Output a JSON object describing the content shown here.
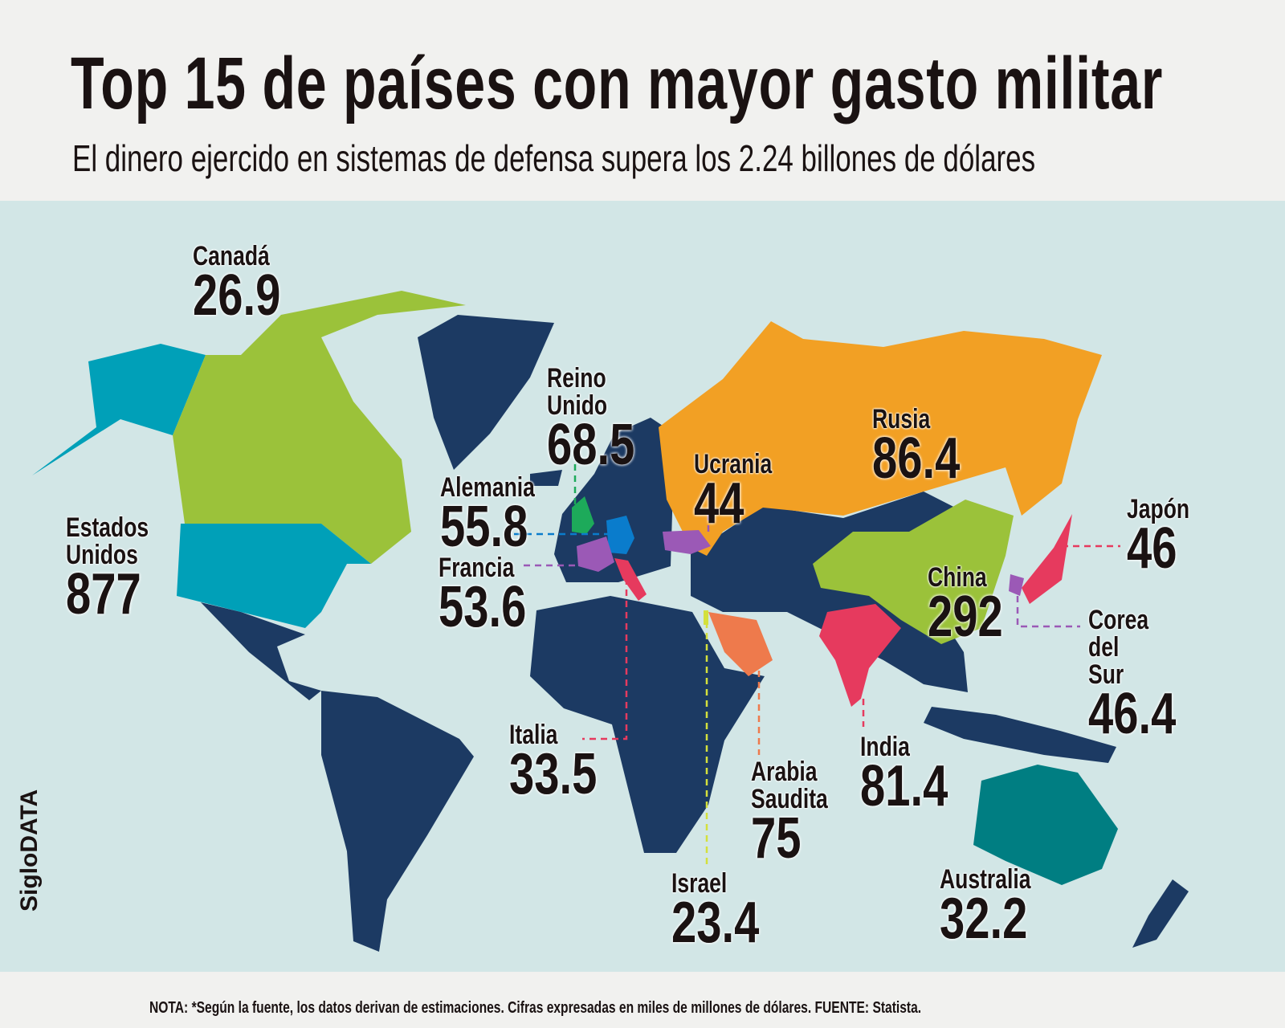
{
  "header": {
    "title": "Top 15 de países con mayor gasto militar",
    "subtitle": "El dinero ejercido en sistemas de defensa supera los 2.24 billones de dólares"
  },
  "countries": [
    {
      "name": "Canadá",
      "value": "26.9",
      "color": "#9bc23a"
    },
    {
      "name": "Estados Unidos",
      "value": "877",
      "color": "#00a0b8"
    },
    {
      "name": "Reino Unido",
      "value": "68.5",
      "color": "#1daa5a"
    },
    {
      "name": "Alemania",
      "value": "55.8",
      "color": "#0a7ccc"
    },
    {
      "name": "Francia",
      "value": "53.6",
      "color": "#9b59b6"
    },
    {
      "name": "Ucrania",
      "value": "44",
      "color": "#9b59b6"
    },
    {
      "name": "Rusia",
      "value": "86.4",
      "color": "#f2a024"
    },
    {
      "name": "Japón",
      "value": "46",
      "color": "#e63a5e"
    },
    {
      "name": "China",
      "value": "292",
      "color": "#9bc23a"
    },
    {
      "name": "Corea del Sur",
      "value": "46.4",
      "color": "#9b59b6"
    },
    {
      "name": "India",
      "value": "81.4",
      "color": "#e63a5e"
    },
    {
      "name": "Italia",
      "value": "33.5",
      "color": "#e63a5e"
    },
    {
      "name": "Arabia Saudita",
      "value": "75",
      "color": "#ee7a4c"
    },
    {
      "name": "Israel",
      "value": "23.4",
      "color": "#d4e03c"
    },
    {
      "name": "Australia",
      "value": "32.2",
      "color": "#007e82"
    }
  ],
  "colors": {
    "ocean": "#d2e6e6",
    "land": "#1c3a63"
  },
  "brand": "SigloDATA",
  "footer": {
    "note": "NOTA: *Según la fuente, los datos derivan de estimaciones. Cifras expresadas en miles de millones de dólares.  FUENTE: Statista."
  }
}
